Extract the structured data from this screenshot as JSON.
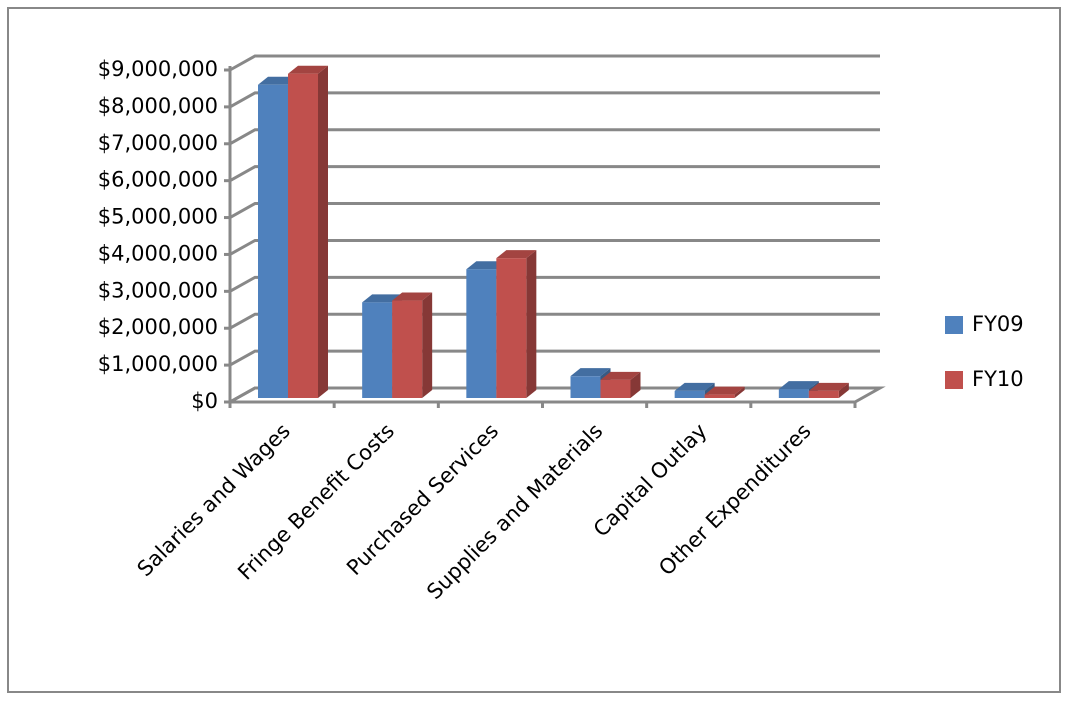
{
  "chart_data": {
    "type": "bar",
    "categories": [
      "Salaries and Wages",
      "Fringe Benefit Costs",
      "Purchased Services",
      "Supplies and Materials",
      "Capital Outlay",
      "Other Expenditures"
    ],
    "series": [
      {
        "name": "FY09",
        "color": "#4f81bd",
        "values": [
          8600000,
          2700000,
          3600000,
          700000,
          300000,
          350000
        ]
      },
      {
        "name": "FY10",
        "color": "#c0504d",
        "values": [
          8900000,
          2750000,
          3900000,
          600000,
          200000,
          300000
        ]
      }
    ],
    "ylim": [
      0,
      9000000
    ],
    "yticks": [
      {
        "value": 0,
        "label": "$0"
      },
      {
        "value": 1000000,
        "label": "$1,000,000"
      },
      {
        "value": 2000000,
        "label": "$2,000,000"
      },
      {
        "value": 3000000,
        "label": "$3,000,000"
      },
      {
        "value": 4000000,
        "label": "$4,000,000"
      },
      {
        "value": 5000000,
        "label": "$5,000,000"
      },
      {
        "value": 6000000,
        "label": "$6,000,000"
      },
      {
        "value": 7000000,
        "label": "$7,000,000"
      },
      {
        "value": 8000000,
        "label": "$8,000,000"
      },
      {
        "value": 9000000,
        "label": "$9,000,000"
      }
    ],
    "grid": true,
    "legend": "right"
  }
}
